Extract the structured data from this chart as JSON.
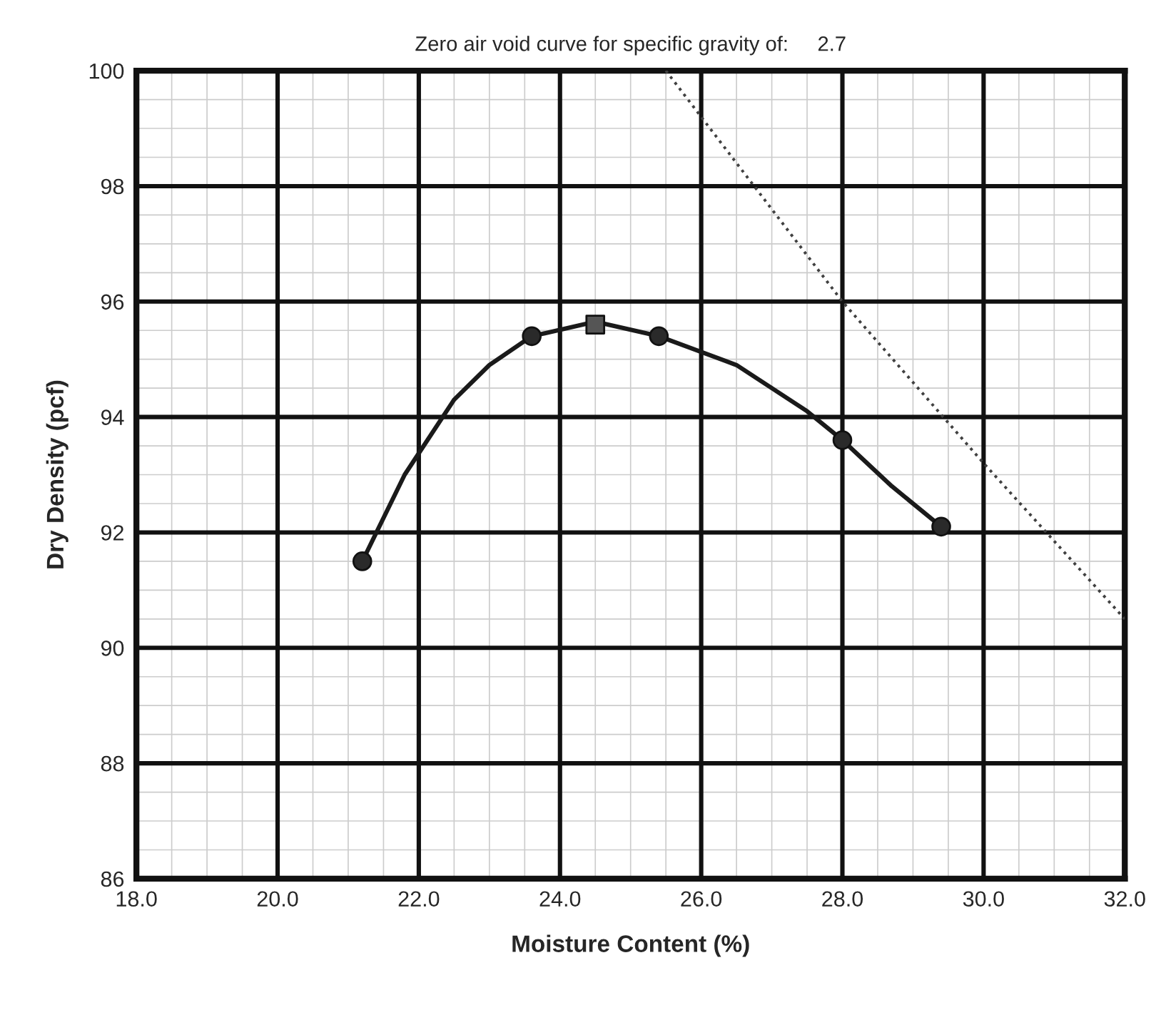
{
  "chart_data": {
    "type": "line",
    "title": "Zero air void curve for specific gravity of:     2.7",
    "xlabel": "Moisture Content (%)",
    "ylabel": "Dry Density (pcf)",
    "xlim": [
      18.0,
      32.0
    ],
    "xticks": [
      {
        "value": 18,
        "label": "18.0"
      },
      {
        "value": 20,
        "label": "20.0"
      },
      {
        "value": 22,
        "label": "22.0"
      },
      {
        "value": 24,
        "label": "24.0"
      },
      {
        "value": 26,
        "label": "26.0"
      },
      {
        "value": 28,
        "label": "28.0"
      },
      {
        "value": 30,
        "label": "30.0"
      },
      {
        "value": 32,
        "label": "32.0"
      }
    ],
    "ylim": [
      86,
      100
    ],
    "yticks": [
      86,
      88,
      90,
      92,
      94,
      96,
      98,
      100
    ],
    "grid": true,
    "series": [
      {
        "color": "#1a1a1a",
        "marker": "none",
        "line_style": "solid",
        "x": [
          21.2,
          21.8,
          22.5,
          23.0,
          23.6,
          24.5,
          25.4,
          26.5,
          27.5,
          28.0,
          28.7,
          29.4
        ],
        "values": [
          91.5,
          93.0,
          94.3,
          94.9,
          95.4,
          95.65,
          95.4,
          94.9,
          94.1,
          93.6,
          92.8,
          92.1
        ]
      },
      {
        "color": "#404040",
        "marker": "none",
        "line_style": "dotted",
        "x": [
          25.5,
          28.0,
          30.0,
          32.0
        ],
        "values": [
          100,
          96.0,
          93.2,
          90.5
        ]
      },
      {
        "type": "scatter",
        "color": "#2a2a2a",
        "marker": "circle",
        "x": [
          21.2,
          23.6,
          25.4,
          28.0,
          29.4
        ],
        "values": [
          91.5,
          95.4,
          95.4,
          93.6,
          92.1
        ]
      },
      {
        "type": "scatter",
        "color": "#555555",
        "marker": "square",
        "x": [
          24.5
        ],
        "values": [
          95.6
        ]
      }
    ]
  }
}
